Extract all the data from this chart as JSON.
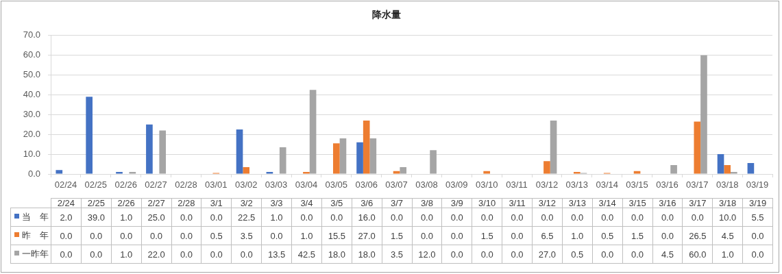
{
  "chart_data": {
    "type": "bar",
    "title": "降水量",
    "categories": [
      "02/24",
      "02/25",
      "02/26",
      "02/27",
      "02/28",
      "03/01",
      "03/02",
      "03/03",
      "03/04",
      "03/05",
      "03/06",
      "03/07",
      "03/08",
      "03/09",
      "03/10",
      "03/11",
      "03/12",
      "03/13",
      "03/14",
      "03/15",
      "03/16",
      "03/17",
      "03/18",
      "03/19"
    ],
    "series": [
      {
        "name": "当　年",
        "color": "#4472c4",
        "values": [
          2.0,
          39.0,
          1.0,
          25.0,
          0.0,
          0.0,
          22.5,
          1.0,
          0.0,
          0.0,
          16.0,
          0.0,
          0.0,
          0.0,
          0.0,
          0.0,
          0.0,
          0.0,
          0.0,
          0.0,
          0.0,
          0.0,
          10.0,
          5.5
        ],
        "value_labels": [
          "2.0",
          "39.0",
          "1.0",
          "25.0",
          "0.0",
          "0.0",
          "22.5",
          "1.0",
          "0.0",
          "0.0",
          "16.0",
          "0.0",
          "0.0",
          "0.0",
          "0.0",
          "0.0",
          "0.0",
          "0.0",
          "0.0",
          "0.0",
          "0.0",
          "0.0",
          "10.0",
          "5.5"
        ]
      },
      {
        "name": "昨　年",
        "color": "#ed7d31",
        "values": [
          0.0,
          0.0,
          0.0,
          0.0,
          0.0,
          0.5,
          3.5,
          0.0,
          1.0,
          15.5,
          27.0,
          1.5,
          0.0,
          0.0,
          1.5,
          0.0,
          6.5,
          1.0,
          0.5,
          1.5,
          0.0,
          26.5,
          4.5,
          0.0
        ],
        "value_labels": [
          "0.0",
          "0.0",
          "0.0",
          "0.0",
          "0.0",
          "0.5",
          "3.5",
          "0.0",
          "1.0",
          "15.5",
          "27.0",
          "1.5",
          "0.0",
          "0.0",
          "1.5",
          "0.0",
          "6.5",
          "1.0",
          "0.5",
          "1.5",
          "0.0",
          "26.5",
          "4.5",
          "0.0"
        ]
      },
      {
        "name": "一昨年",
        "color": "#a5a5a5",
        "values": [
          0.0,
          0.0,
          1.0,
          22.0,
          0.0,
          0.0,
          0.0,
          13.5,
          42.5,
          18.0,
          18.0,
          3.5,
          12.0,
          0.0,
          0.0,
          0.0,
          27.0,
          0.5,
          0.0,
          0.0,
          4.5,
          60.0,
          1.0,
          0.0
        ],
        "value_labels": [
          "0.0",
          "0.0",
          "1.0",
          "22.0",
          "0.0",
          "0.0",
          "0.0",
          "13.5",
          "42.5",
          "18.0",
          "18.0",
          "3.5",
          "12.0",
          "0.0",
          "0.0",
          "0.0",
          "27.0",
          "0.5",
          "0.0",
          "0.0",
          "4.5",
          "60.0",
          "1.0",
          "0.0"
        ]
      }
    ],
    "ylim": [
      0,
      70
    ],
    "yticks": [
      {
        "value": 0,
        "label": "0.0"
      },
      {
        "value": 10,
        "label": "10.0"
      },
      {
        "value": 20,
        "label": "20.0"
      },
      {
        "value": 30,
        "label": "30.0"
      },
      {
        "value": 40,
        "label": "40.0"
      },
      {
        "value": 50,
        "label": "50.0"
      },
      {
        "value": 60,
        "label": "60.0"
      },
      {
        "value": 70,
        "label": "70.0"
      }
    ],
    "annotations": [
      "2/24",
      "2/25",
      "2/26",
      "2/27",
      "2/28",
      "3/1",
      "3/2",
      "3/3",
      "3/4",
      "3/5",
      "3/6",
      "3/7",
      "3/8",
      "3/9",
      "3/10",
      "3/11",
      "3/12",
      "3/13",
      "3/14",
      "3/15",
      "3/16",
      "3/17",
      "3/18",
      "3/19"
    ],
    "grid": "y",
    "legend": "bottom"
  }
}
